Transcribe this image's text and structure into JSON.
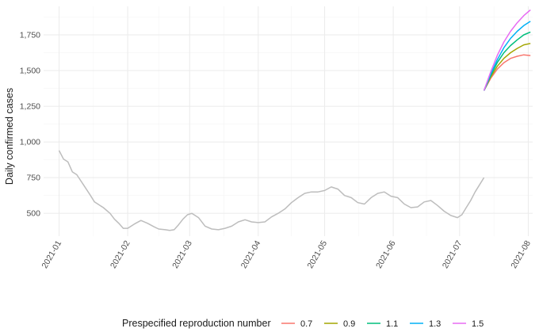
{
  "chart_data": {
    "type": "line",
    "title": "",
    "xlabel": "",
    "ylabel": "Daily confirmed cases",
    "grid": true,
    "legend_placement": "bottom",
    "legend_title": "Prespecified reproduction number",
    "xlim": [
      "2020-12-25",
      "2021-08-03"
    ],
    "ylim": [
      340,
      1950
    ],
    "x_ticks": [
      "2021-01",
      "2021-02",
      "2021-03",
      "2021-04",
      "2021-05",
      "2021-06",
      "2021-07",
      "2021-08"
    ],
    "x_tick_dates": [
      "2021-01-01",
      "2021-02-01",
      "2021-03-01",
      "2021-04-01",
      "2021-05-01",
      "2021-06-01",
      "2021-07-01",
      "2021-08-01"
    ],
    "y_ticks": [
      500,
      750,
      1000,
      1250,
      1500,
      1750
    ],
    "y_tick_labels": [
      "500",
      "750",
      "1,000",
      "1,250",
      "1,500",
      "1,750"
    ],
    "observed": {
      "color": "#bdbdbd",
      "x": [
        "2021-01-01",
        "2021-01-03",
        "2021-01-05",
        "2021-01-07",
        "2021-01-09",
        "2021-01-12",
        "2021-01-15",
        "2021-01-17",
        "2021-01-19",
        "2021-01-21",
        "2021-01-24",
        "2021-01-26",
        "2021-01-28",
        "2021-01-30",
        "2021-02-01",
        "2021-02-04",
        "2021-02-07",
        "2021-02-10",
        "2021-02-13",
        "2021-02-15",
        "2021-02-18",
        "2021-02-20",
        "2021-02-22",
        "2021-02-24",
        "2021-02-26",
        "2021-02-28",
        "2021-03-02",
        "2021-03-05",
        "2021-03-08",
        "2021-03-11",
        "2021-03-14",
        "2021-03-17",
        "2021-03-20",
        "2021-03-23",
        "2021-03-26",
        "2021-03-29",
        "2021-04-01",
        "2021-04-04",
        "2021-04-07",
        "2021-04-10",
        "2021-04-13",
        "2021-04-16",
        "2021-04-19",
        "2021-04-22",
        "2021-04-25",
        "2021-04-28",
        "2021-05-01",
        "2021-05-04",
        "2021-05-07",
        "2021-05-10",
        "2021-05-13",
        "2021-05-16",
        "2021-05-19",
        "2021-05-22",
        "2021-05-25",
        "2021-05-28",
        "2021-05-31",
        "2021-06-03",
        "2021-06-06",
        "2021-06-09",
        "2021-06-12",
        "2021-06-15",
        "2021-06-18",
        "2021-06-21",
        "2021-06-24",
        "2021-06-27",
        "2021-06-30",
        "2021-07-02",
        "2021-07-04",
        "2021-07-06",
        "2021-07-08",
        "2021-07-10",
        "2021-07-12"
      ],
      "y": [
        940,
        880,
        860,
        790,
        770,
        700,
        630,
        580,
        560,
        540,
        500,
        460,
        430,
        395,
        395,
        425,
        450,
        430,
        405,
        390,
        385,
        380,
        385,
        420,
        460,
        490,
        500,
        470,
        410,
        390,
        385,
        395,
        410,
        440,
        455,
        440,
        435,
        440,
        475,
        500,
        530,
        575,
        610,
        640,
        650,
        650,
        660,
        685,
        670,
        625,
        610,
        575,
        565,
        610,
        640,
        650,
        620,
        610,
        565,
        540,
        545,
        580,
        590,
        555,
        515,
        485,
        470,
        490,
        540,
        590,
        650,
        700,
        750
      ]
    },
    "projection_start": "2021-07-12",
    "projection_x": [
      "2021-07-12",
      "2021-07-15",
      "2021-07-18",
      "2021-07-21",
      "2021-07-24",
      "2021-07-27",
      "2021-07-30",
      "2021-08-02"
    ],
    "series": [
      {
        "name": "0.7",
        "color": "#f8766d",
        "values": [
          1360,
          1445,
          1510,
          1555,
          1585,
          1600,
          1610,
          1605
        ]
      },
      {
        "name": "0.9",
        "color": "#a3a500",
        "values": [
          1360,
          1455,
          1530,
          1585,
          1625,
          1655,
          1680,
          1690
        ]
      },
      {
        "name": "1.1",
        "color": "#00bf7d",
        "values": [
          1360,
          1465,
          1555,
          1625,
          1675,
          1715,
          1750,
          1770
        ]
      },
      {
        "name": "1.3",
        "color": "#00b0f6",
        "values": [
          1360,
          1475,
          1575,
          1660,
          1725,
          1775,
          1815,
          1845
        ]
      },
      {
        "name": "1.5",
        "color": "#e76bf3",
        "values": [
          1360,
          1490,
          1605,
          1700,
          1775,
          1835,
          1885,
          1925
        ]
      }
    ]
  }
}
